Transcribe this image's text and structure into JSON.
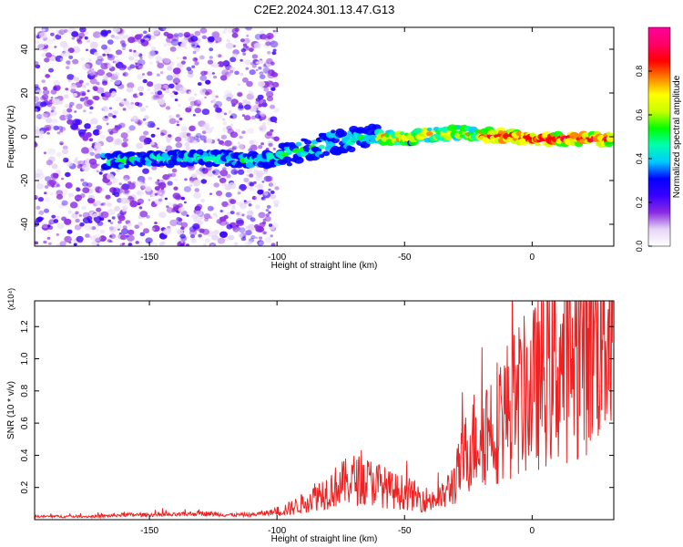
{
  "title": "C2E2.2024.301.13.47.G13",
  "chart_data": [
    {
      "type": "heatmap",
      "xlabel": "Height of straight line (km)",
      "ylabel": "Frequency (Hz)",
      "xlim": [
        -195,
        32
      ],
      "ylim": [
        -50,
        50
      ],
      "xticks": [
        -150,
        -100,
        -50,
        0
      ],
      "yticks": [
        -40,
        -20,
        0,
        20,
        40
      ],
      "ridge": {
        "x": [
          -165,
          -150,
          -140,
          -130,
          -120,
          -110,
          -100,
          -90,
          -80,
          -70,
          -60,
          -50,
          -40,
          -30,
          -20,
          -10,
          0,
          10,
          20,
          30
        ],
        "y": [
          -11,
          -10,
          -10,
          -9.5,
          -10,
          -11,
          -10,
          -6,
          -3,
          -1,
          0,
          -1,
          1,
          2,
          1,
          0,
          -1,
          -1,
          -1,
          -1
        ]
      },
      "colorbar": {
        "label": "Normalized spectral amplitude",
        "range": [
          0,
          1
        ],
        "ticks": [
          0.0,
          0.2,
          0.4,
          0.6,
          0.8
        ],
        "tick_labels": [
          "0.0",
          "0.2",
          "0.4",
          "0.6",
          "0.8"
        ],
        "colors": [
          "#ffffff",
          "#e6d6f5",
          "#8a2be2",
          "#3a00ff",
          "#0000ff",
          "#00c8ff",
          "#00ffb0",
          "#00ff00",
          "#c8ff00",
          "#ffff00",
          "#ff8000",
          "#ff0000",
          "#ff0066",
          "#ff0099"
        ]
      }
    },
    {
      "type": "line",
      "xlabel": "Height of straight line (km)",
      "ylabel": "SNR (10 * v/v)",
      "y_multiplier": "(x10⁴)",
      "xlim": [
        -195,
        32
      ],
      "ylim": [
        0,
        1.36
      ],
      "xticks": [
        -150,
        -100,
        -50,
        0
      ],
      "yticks": [
        0.2,
        0.4,
        0.6,
        0.8,
        1.0,
        1.2
      ],
      "ytick_labels": [
        "0.2",
        "0.4",
        "0.6",
        "0.8",
        "1.0",
        "1.2"
      ],
      "color": "#ee2222",
      "series": [
        {
          "x": [
            -195,
            -180,
            -170,
            -160,
            -150,
            -140,
            -130,
            -120,
            -110,
            -100,
            -95,
            -90,
            -85,
            -80,
            -75,
            -70,
            -65,
            -60,
            -55,
            -50,
            -45,
            -40,
            -35,
            -30,
            -25,
            -20,
            -15,
            -10,
            -5,
            0,
            5,
            10,
            15,
            20,
            25,
            30,
            32
          ],
          "values": [
            0.02,
            0.02,
            0.02,
            0.03,
            0.03,
            0.03,
            0.04,
            0.03,
            0.03,
            0.05,
            0.07,
            0.1,
            0.15,
            0.18,
            0.22,
            0.25,
            0.24,
            0.22,
            0.18,
            0.17,
            0.14,
            0.12,
            0.14,
            0.25,
            0.45,
            0.55,
            0.6,
            0.68,
            0.75,
            0.8,
            0.9,
            0.95,
            1.0,
            1.1,
            1.18,
            1.25,
            1.28
          ]
        }
      ]
    }
  ]
}
